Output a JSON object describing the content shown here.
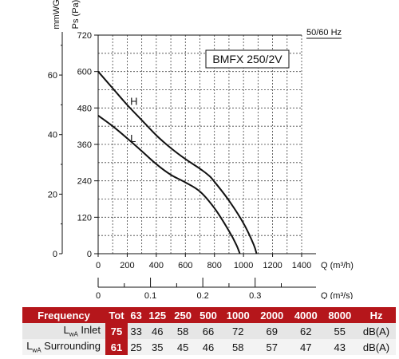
{
  "chart_data": {
    "type": "line",
    "model_label": "BMFX 250/2V",
    "frequency_label": "50/60 Hz",
    "y_left_label": "mmWG",
    "y_left_ticks": [
      "0",
      "20",
      "40",
      "60"
    ],
    "y_pa_label": "Ps (Pa)",
    "y_pa_ticks": [
      "0",
      "120",
      "240",
      "360",
      "480",
      "600",
      "720"
    ],
    "x_label": "Q (m³/h)",
    "x_ticks": [
      "0",
      "200",
      "400",
      "600",
      "800",
      "1000",
      "1200",
      "1400"
    ],
    "x2_label": "Q (m³/s)",
    "x2_ticks": [
      "0",
      "0.1",
      "0.2",
      "0.3"
    ],
    "xlim": [
      0,
      1400
    ],
    "ylim": [
      0,
      720
    ],
    "grid": true,
    "series": [
      {
        "name": "H",
        "points": [
          [
            0,
            600
          ],
          [
            100,
            545
          ],
          [
            200,
            490
          ],
          [
            300,
            440
          ],
          [
            400,
            390
          ],
          [
            500,
            348
          ],
          [
            600,
            312
          ],
          [
            700,
            280
          ],
          [
            760,
            258
          ],
          [
            800,
            237
          ],
          [
            900,
            175
          ],
          [
            1000,
            100
          ],
          [
            1070,
            30
          ],
          [
            1090,
            0
          ]
        ]
      },
      {
        "name": "L",
        "points": [
          [
            0,
            455
          ],
          [
            100,
            420
          ],
          [
            200,
            380
          ],
          [
            300,
            338
          ],
          [
            400,
            295
          ],
          [
            500,
            260
          ],
          [
            600,
            235
          ],
          [
            700,
            205
          ],
          [
            800,
            150
          ],
          [
            900,
            75
          ],
          [
            950,
            30
          ],
          [
            975,
            0
          ]
        ]
      }
    ]
  },
  "table": {
    "header": {
      "label": "Frequency",
      "tot": "Tot",
      "bands": [
        "63",
        "125",
        "250",
        "500",
        "1000",
        "2000",
        "4000",
        "8000"
      ],
      "unit": "Hz"
    },
    "rows": [
      {
        "label_main": "L",
        "label_sub": "wA",
        "label_rest": " Inlet",
        "tot": "75",
        "values": [
          "33",
          "46",
          "58",
          "66",
          "72",
          "69",
          "62",
          "55"
        ],
        "unit": "dB(A)"
      },
      {
        "label_main": "L",
        "label_sub": "wA",
        "label_rest": " Surrounding",
        "tot": "61",
        "values": [
          "25",
          "35",
          "45",
          "46",
          "58",
          "57",
          "47",
          "43"
        ],
        "unit": "dB(A)"
      }
    ]
  }
}
